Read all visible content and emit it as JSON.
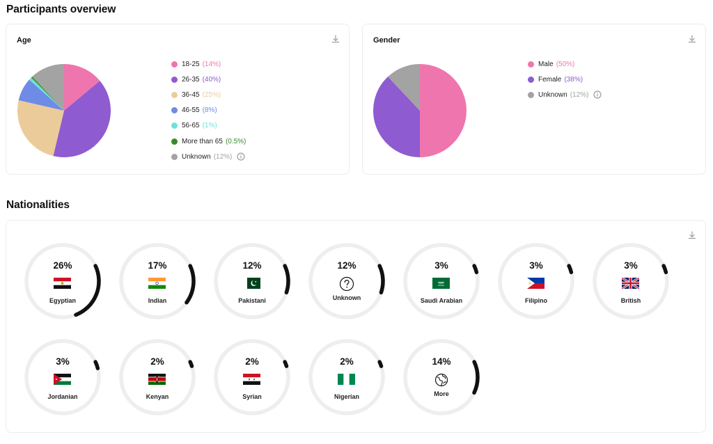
{
  "page": {
    "title": "Participants overview",
    "nationalities_title": "Nationalities"
  },
  "age": {
    "title": "Age",
    "download_icon": "download-icon",
    "info_icon": "info-icon",
    "slices": [
      {
        "label": "18-25",
        "pct_text": "(14%)",
        "value": 14,
        "color": "#ef75ae"
      },
      {
        "label": "26-35",
        "pct_text": "(40%)",
        "value": 40,
        "color": "#8f5bd0"
      },
      {
        "label": "36-45",
        "pct_text": "(25%)",
        "value": 25,
        "color": "#eccb9b"
      },
      {
        "label": "46-55",
        "pct_text": "(8%)",
        "value": 8,
        "color": "#6e8be6"
      },
      {
        "label": "56-65",
        "pct_text": "(1%)",
        "value": 1,
        "color": "#6ce2da"
      },
      {
        "label": "More than 65",
        "pct_text": "(0.5%)",
        "value": 0.5,
        "color": "#3a8a2a"
      },
      {
        "label": "Unknown",
        "pct_text": "(12%)",
        "value": 12,
        "color": "#a3a3a3"
      }
    ]
  },
  "gender": {
    "title": "Gender",
    "download_icon": "download-icon",
    "info_icon": "info-icon",
    "slices": [
      {
        "label": "Male",
        "pct_text": "(50%)",
        "value": 50,
        "color": "#ef75ae"
      },
      {
        "label": "Female",
        "pct_text": "(38%)",
        "value": 38,
        "color": "#8f5bd0"
      },
      {
        "label": "Unknown",
        "pct_text": "(12%)",
        "value": 12,
        "color": "#a3a3a3"
      }
    ]
  },
  "nationalities": {
    "download_icon": "download-icon",
    "ring_track_color": "#eeeeee",
    "ring_fill_color": "#111111",
    "items": [
      {
        "name": "Egyptian",
        "pct_text": "26%",
        "value": 26,
        "flag": "egypt-flag-icon"
      },
      {
        "name": "Indian",
        "pct_text": "17%",
        "value": 17,
        "flag": "india-flag-icon"
      },
      {
        "name": "Pakistani",
        "pct_text": "12%",
        "value": 12,
        "flag": "pakistan-flag-icon"
      },
      {
        "name": "Unknown",
        "pct_text": "12%",
        "value": 12,
        "flag": "question-circle-icon"
      },
      {
        "name": "Saudi Arabian",
        "pct_text": "3%",
        "value": 3,
        "flag": "saudi-arabia-flag-icon"
      },
      {
        "name": "Filipino",
        "pct_text": "3%",
        "value": 3,
        "flag": "philippines-flag-icon"
      },
      {
        "name": "British",
        "pct_text": "3%",
        "value": 3,
        "flag": "uk-flag-icon"
      },
      {
        "name": "Jordanian",
        "pct_text": "3%",
        "value": 3,
        "flag": "jordan-flag-icon"
      },
      {
        "name": "Kenyan",
        "pct_text": "2%",
        "value": 2,
        "flag": "kenya-flag-icon"
      },
      {
        "name": "Syrian",
        "pct_text": "2%",
        "value": 2,
        "flag": "syria-flag-icon"
      },
      {
        "name": "Nigerian",
        "pct_text": "2%",
        "value": 2,
        "flag": "nigeria-flag-icon"
      },
      {
        "name": "More",
        "pct_text": "14%",
        "value": 14,
        "flag": "globe-icon"
      }
    ]
  }
}
